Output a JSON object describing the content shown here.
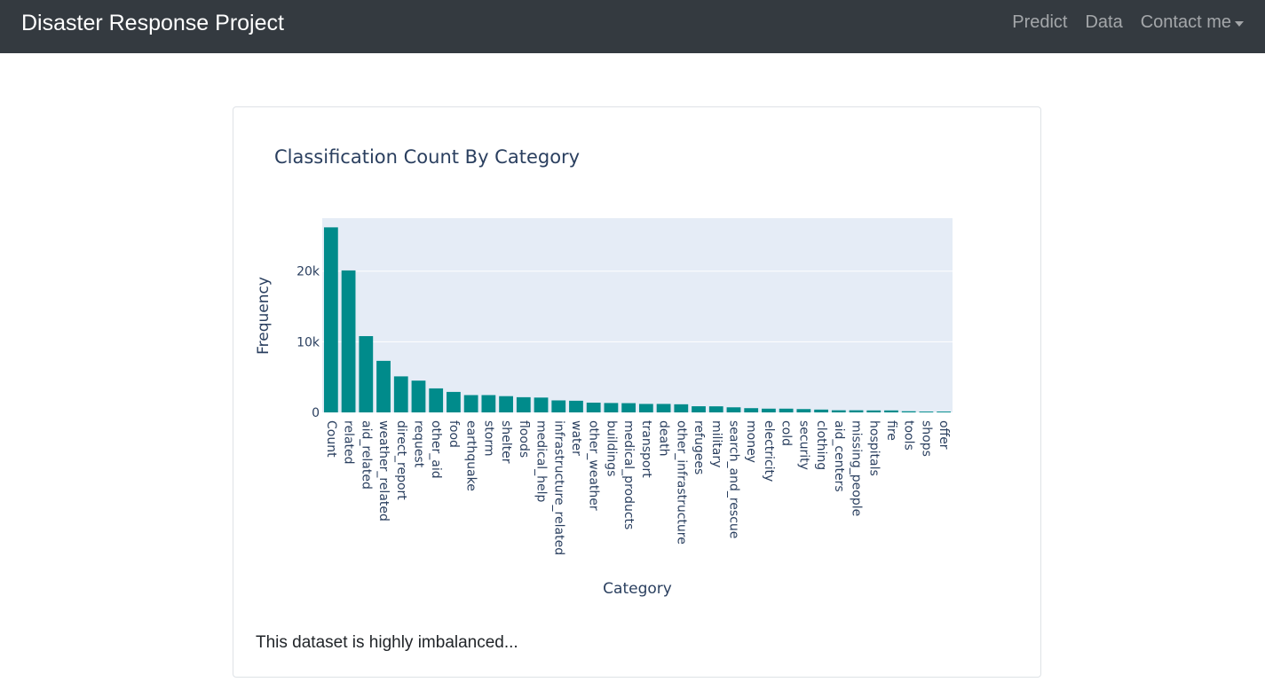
{
  "navbar": {
    "brand": "Disaster Response Project",
    "links": [
      "Predict",
      "Data",
      "Contact me"
    ]
  },
  "card": {
    "note": "This dataset is highly imbalanced..."
  },
  "colors": {
    "navbar_bg": "#343a40",
    "bar": "#008b8b",
    "plot_bg": "#e5ecf6"
  },
  "chart_data": {
    "type": "bar",
    "title": "Classification Count By Category",
    "xlabel": "Category",
    "ylabel": "Frequency",
    "ylim": [
      0,
      27500
    ],
    "yticks": [
      0,
      10000,
      20000
    ],
    "ytick_labels": [
      "0",
      "10k",
      "20k"
    ],
    "grid": true,
    "categories": [
      "Count",
      "related",
      "aid_related",
      "weather_related",
      "direct_report",
      "request",
      "other_aid",
      "food",
      "earthquake",
      "storm",
      "shelter",
      "floods",
      "medical_help",
      "infrastructure_related",
      "water",
      "other_weather",
      "buildings",
      "medical_products",
      "transport",
      "death",
      "other_infrastructure",
      "refugees",
      "military",
      "search_and_rescue",
      "money",
      "electricity",
      "cold",
      "security",
      "clothing",
      "aid_centers",
      "missing_people",
      "hospitals",
      "fire",
      "tools",
      "shops",
      "offer"
    ],
    "values": [
      26200,
      20100,
      10800,
      7300,
      5100,
      4500,
      3400,
      2900,
      2450,
      2450,
      2300,
      2150,
      2100,
      1700,
      1650,
      1380,
      1330,
      1310,
      1200,
      1200,
      1150,
      870,
      860,
      720,
      600,
      530,
      530,
      470,
      400,
      300,
      300,
      280,
      280,
      160,
      120,
      120
    ]
  }
}
